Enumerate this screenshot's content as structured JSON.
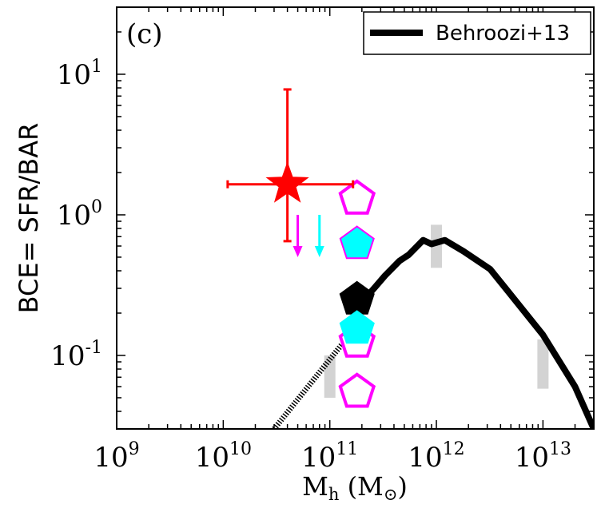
{
  "chart_data": {
    "type": "scatter",
    "panel_label": "(c)",
    "ylabel": "BCE= SFR/BAR",
    "xlabel": {
      "main": "M",
      "sub": "h",
      "unit_open": " (M",
      "unit_sub": "⊙",
      "unit_close": ")"
    },
    "xscale": "log",
    "yscale": "log",
    "xlim": [
      1000000000.0,
      30000000000000.0
    ],
    "ylim": [
      0.03,
      30
    ],
    "x_ticks": [
      {
        "value": 1000000000.0,
        "base": "10",
        "exp": "9"
      },
      {
        "value": 10000000000.0,
        "base": "10",
        "exp": "10"
      },
      {
        "value": 100000000000.0,
        "base": "10",
        "exp": "11"
      },
      {
        "value": 1000000000000.0,
        "base": "10",
        "exp": "12"
      },
      {
        "value": 10000000000000.0,
        "base": "10",
        "exp": "13"
      }
    ],
    "y_ticks": [
      {
        "value": 0.1,
        "base": "10",
        "exp": "-1"
      },
      {
        "value": 1,
        "base": "10",
        "exp": "0"
      },
      {
        "value": 10,
        "base": "10",
        "exp": "1"
      }
    ],
    "legend": {
      "position": "top-right",
      "entries": [
        {
          "label": "Behroozi+13",
          "color": "#000000"
        }
      ]
    },
    "series": [
      {
        "name": "Behroozi+13",
        "kind": "line",
        "color": "#000000",
        "points": [
          [
            230000000000.0,
            0.27
          ],
          [
            270000000000.0,
            0.31
          ],
          [
            330000000000.0,
            0.37
          ],
          [
            450000000000.0,
            0.47
          ],
          [
            550000000000.0,
            0.52
          ],
          [
            750000000000.0,
            0.66
          ],
          [
            900000000000.0,
            0.62
          ],
          [
            1200000000000.0,
            0.66
          ],
          [
            1800000000000.0,
            0.55
          ],
          [
            3200000000000.0,
            0.41
          ],
          [
            5000000000000.0,
            0.27
          ],
          [
            10000000000000.0,
            0.14
          ],
          [
            20000000000000.0,
            0.06
          ],
          [
            30000000000000.0,
            0.03
          ]
        ]
      },
      {
        "name": "Behroozi+13 extrapolation",
        "kind": "dotted-line",
        "color": "#000000",
        "points": [
          [
            30000000000.0,
            0.03
          ],
          [
            130000000000.0,
            0.12
          ]
        ]
      },
      {
        "name": "Uncertainty bands",
        "kind": "bars",
        "color": "#d3d3d3",
        "items": [
          {
            "x": 100000000000.0,
            "y_low": 0.05,
            "y_high": 0.1
          },
          {
            "x": 1000000000000.0,
            "y_low": 0.42,
            "y_high": 0.85
          },
          {
            "x": 10000000000000.0,
            "y_low": 0.058,
            "y_high": 0.13
          }
        ]
      },
      {
        "name": "Star measurement",
        "kind": "errorbar",
        "marker": "star",
        "color": "#ff0000",
        "x": 40000000000.0,
        "y": 1.65,
        "x_err": [
          11000000000.0,
          165000000000.0
        ],
        "y_err": [
          0.65,
          7.8
        ]
      },
      {
        "name": "Upper limits",
        "kind": "upper-limit-arrows",
        "items": [
          {
            "x": 50000000000.0,
            "y_start": 1.0,
            "y_end": 0.5,
            "color": "#ff00ff"
          },
          {
            "x": 80000000000.0,
            "y_start": 1.0,
            "y_end": 0.5,
            "color": "#00ffff"
          }
        ]
      },
      {
        "name": "Pentagon markers",
        "kind": "scatter",
        "marker": "pentagon",
        "points": [
          {
            "x": 180000000000.0,
            "y": 1.3,
            "fill": "none",
            "edge": "#ff00ff"
          },
          {
            "x": 180000000000.0,
            "y": 0.62,
            "fill": "#00ffff",
            "edge": "#ff00ff"
          },
          {
            "x": 180000000000.0,
            "y": 0.125,
            "fill": "none",
            "edge": "#ff00ff"
          },
          {
            "x": 180000000000.0,
            "y": 0.055,
            "fill": "none",
            "edge": "#ff00ff"
          },
          {
            "x": 180000000000.0,
            "y": 0.25,
            "fill": "#000000",
            "edge": "#000000"
          },
          {
            "x": 180000000000.0,
            "y": 0.155,
            "fill": "#00ffff",
            "edge": "#00ffff"
          }
        ]
      }
    ]
  }
}
